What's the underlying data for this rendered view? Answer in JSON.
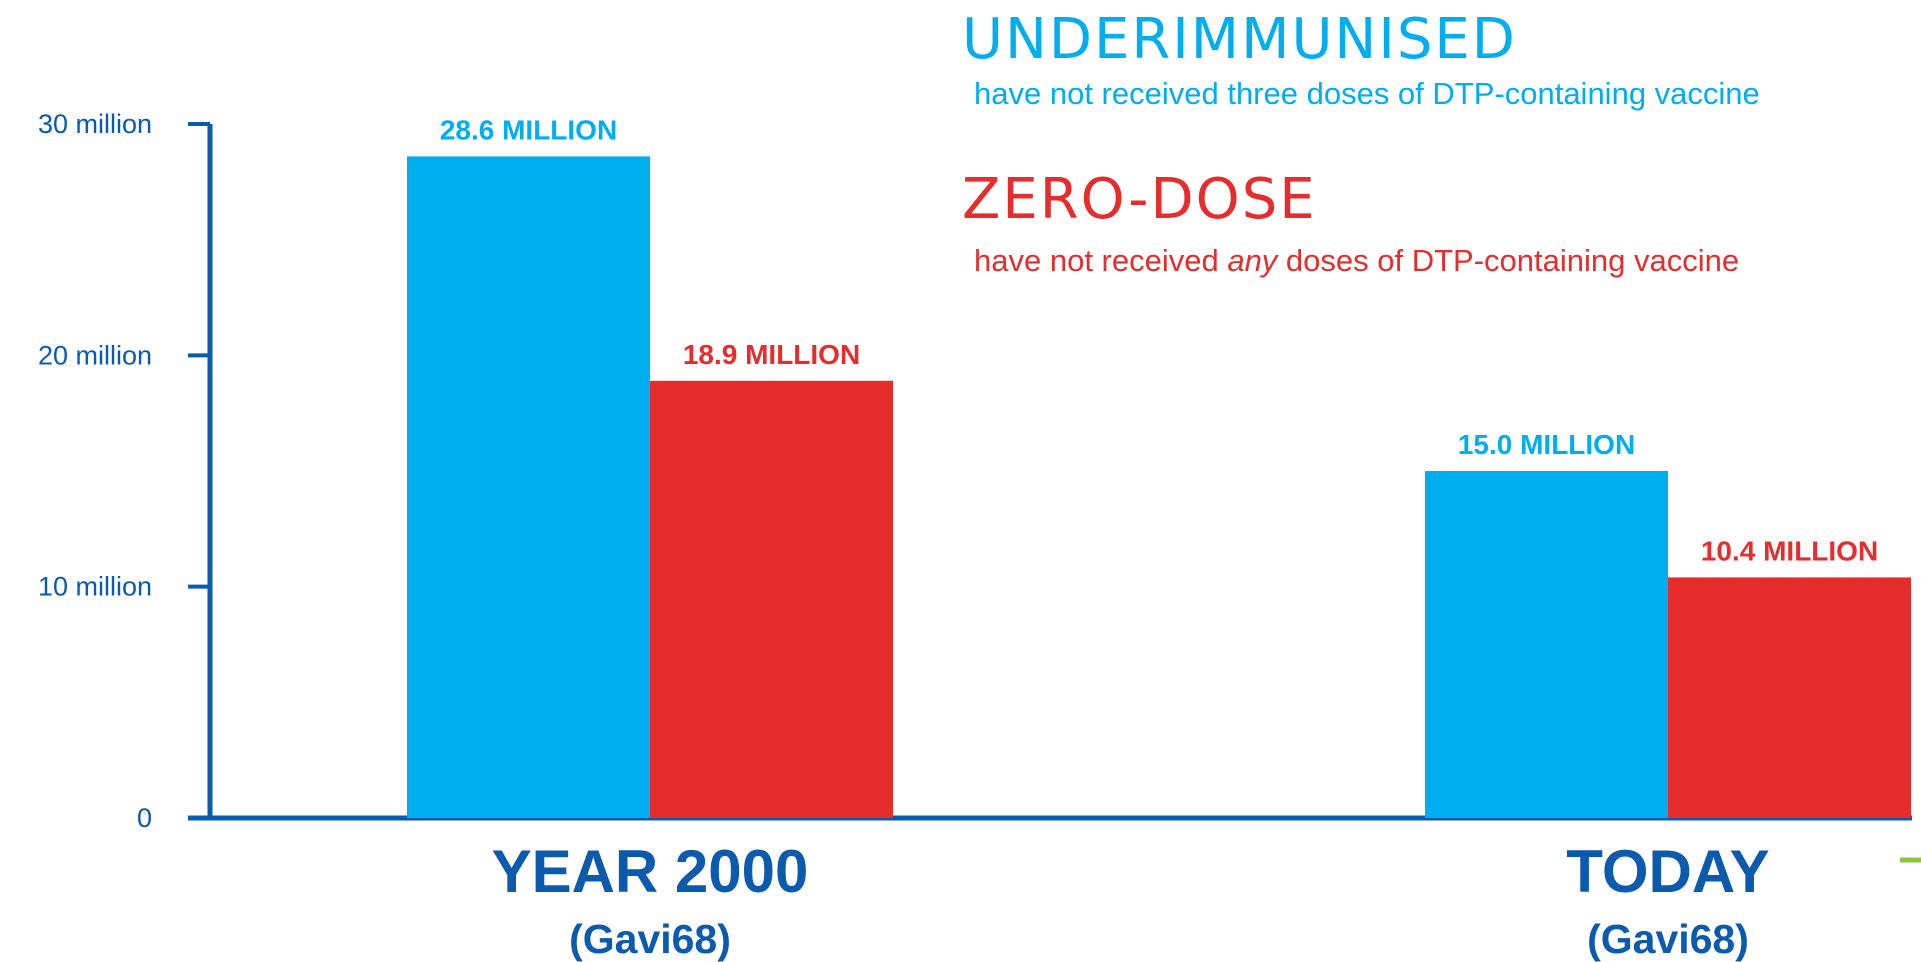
{
  "chart_data": {
    "type": "bar",
    "categories": [
      "YEAR 2000",
      "TODAY"
    ],
    "category_sublabels": [
      "(Gavi68)",
      "(Gavi68)"
    ],
    "series": [
      {
        "name": "UNDERIMMUNISED",
        "description": "have not received three doses of DTP-containing vaccine",
        "color": "#00aeef",
        "values": [
          28.6,
          15.0
        ],
        "data_labels": [
          "28.6 MILLION",
          "15.0 MILLION"
        ]
      },
      {
        "name": "ZERO-DOSE",
        "description_parts": [
          "have not received ",
          "any",
          " doses of DTP-containing vaccine"
        ],
        "color": "#e52d2e",
        "values": [
          18.9,
          10.4
        ],
        "data_labels": [
          "18.9 MILLION",
          "10.4 MILLION"
        ]
      }
    ],
    "yticks": [
      0,
      10,
      20,
      30
    ],
    "ytick_labels": [
      "0",
      "10 million",
      "20 million",
      "30 million"
    ],
    "ylim": [
      0,
      30
    ],
    "grid": false,
    "legend_position": "top-right",
    "title": "",
    "xlabel": "",
    "ylabel": ""
  },
  "colors": {
    "axis": "#0a5aad",
    "category_label": "#0a5aad",
    "accent_green": "#8dc63f"
  }
}
